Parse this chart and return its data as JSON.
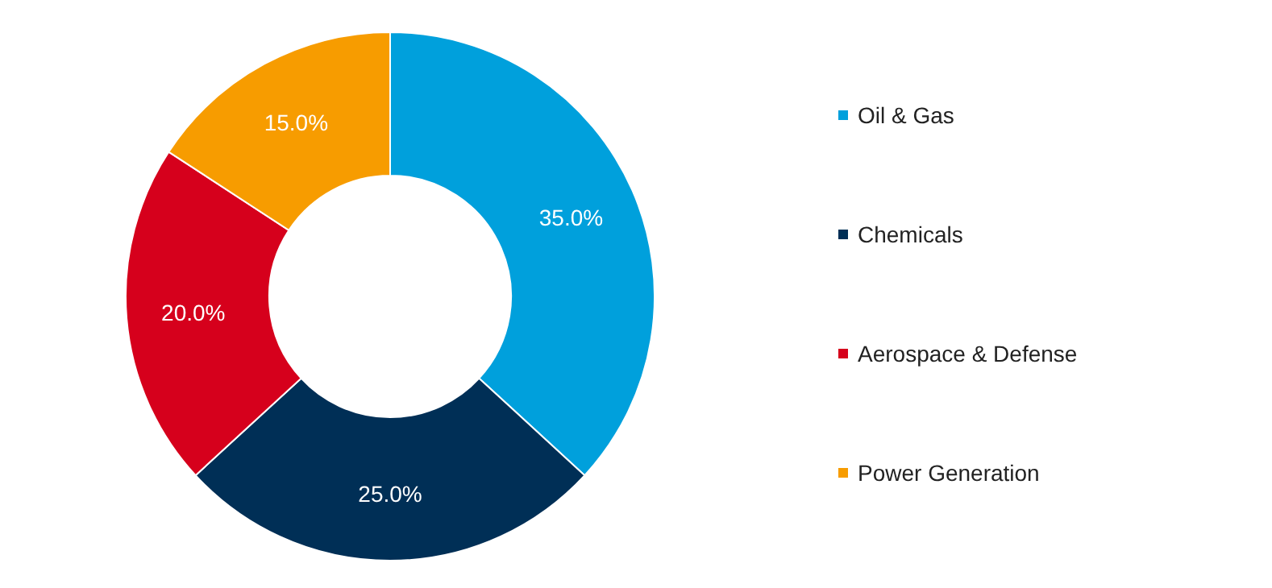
{
  "chart_data": {
    "type": "donut",
    "categories": [
      "Oil & Gas",
      "Chemicals",
      "Aerospace & Defense",
      "Power Generation"
    ],
    "values": [
      35,
      25,
      20,
      15
    ],
    "colors": [
      "#00a0dc",
      "#002f56",
      "#d6001c",
      "#f79c00"
    ],
    "value_labels": [
      "35.0%",
      "25.0%",
      "20.0%",
      "15.0%"
    ],
    "legend": "right"
  }
}
